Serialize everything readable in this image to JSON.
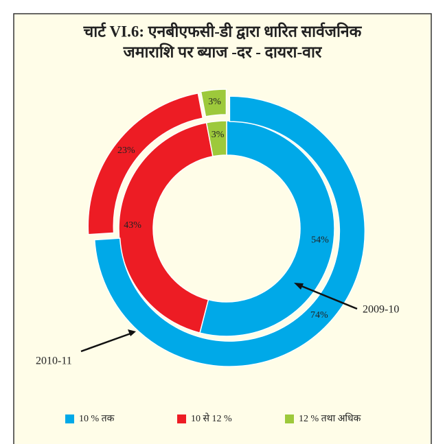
{
  "chart_data": {
    "type": "donut",
    "title": [
      "चार्ट VI.6:  एनबीएफसी-डी द्वारा धारित सार्वजनिक",
      "जमाराशि पर ब्याज -दर - दायरा-वार"
    ],
    "categories": [
      "10 % तक",
      "10 से 12 %",
      "12 % तथा अधिक"
    ],
    "colors": [
      "#00a9e8",
      "#ed1c24",
      "#9dc93b"
    ],
    "series": [
      {
        "name": "2009-10",
        "values": [
          54,
          43,
          3
        ],
        "value_labels": [
          "54%",
          "43%",
          "3%"
        ]
      },
      {
        "name": "2010-11",
        "values": [
          74,
          23,
          3
        ],
        "value_labels": [
          "74%",
          "23%",
          "3%"
        ]
      }
    ],
    "legend": "bottom"
  }
}
